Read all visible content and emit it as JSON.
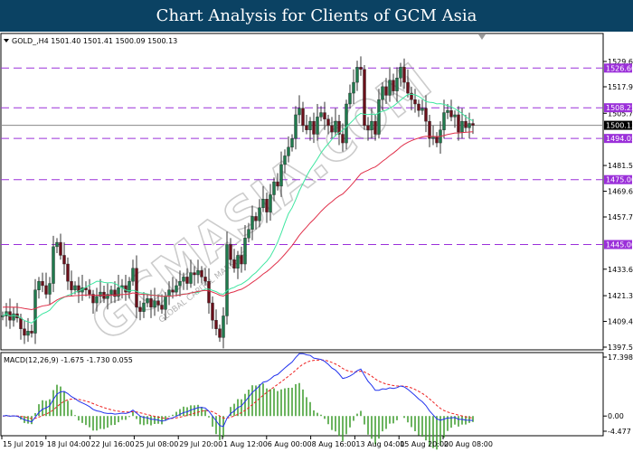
{
  "header": {
    "title": "Chart Analysis for Clients of GCM Asia"
  },
  "watermark": {
    "logo_text": "GCMASIA.COM",
    "sub_text": "GLOBAL CAPITAL MARKETS"
  },
  "colors": {
    "bull": "#1f7a4d",
    "bear": "#6b0f1a",
    "ma_fast": "#3ee6a0",
    "ma_slow": "#e0304a",
    "level": "#9b30d9",
    "macd": "#2233ee",
    "signal": "#ee2222",
    "hist": "#3a9a2a"
  },
  "chart_data": [
    {
      "type": "candlestick",
      "symbol_info": "GOLD_,H4  1501.40 1501.41 1500.09 1500.13",
      "current_price": "1500.13",
      "ylim": [
        1397.55,
        1529.65
      ],
      "y_ticks": [
        "1529.65",
        "1517.95",
        "1505.70",
        "1481.55",
        "1469.65",
        "1457.75",
        "1433.60",
        "1421.35",
        "1409.45",
        "1397.55"
      ],
      "x_ticks": [
        "15 Jul 2019",
        "18 Jul 04:00",
        "22 Jul 16:00",
        "25 Jul 08:00",
        "29 Jul 20:00",
        "1 Aug 12:00",
        "6 Aug 00:00",
        "8 Aug 16:00",
        "13 Aug 04:00",
        "15 Aug 20:00",
        "20 Aug 08:00"
      ],
      "levels": [
        "1526.60",
        "1508.25",
        "1494.05",
        "1475.00",
        "1445.00"
      ],
      "closes": [
        1412,
        1414,
        1410,
        1413,
        1411,
        1406,
        1403,
        1405,
        1404,
        1424,
        1428,
        1426,
        1422,
        1427,
        1444,
        1446,
        1440,
        1436,
        1428,
        1424,
        1426,
        1423,
        1425,
        1424,
        1422,
        1418,
        1421,
        1423,
        1420,
        1422,
        1424,
        1421,
        1425,
        1426,
        1423,
        1428,
        1434,
        1416,
        1414,
        1418,
        1420,
        1416,
        1419,
        1417,
        1415,
        1421,
        1424,
        1423,
        1426,
        1428,
        1430,
        1427,
        1432,
        1431,
        1433,
        1430,
        1428,
        1418,
        1410,
        1406,
        1402,
        1412,
        1445,
        1438,
        1434,
        1440,
        1436,
        1448,
        1452,
        1458,
        1456,
        1462,
        1466,
        1460,
        1468,
        1474,
        1472,
        1482,
        1486,
        1490,
        1494,
        1505,
        1508,
        1500,
        1498,
        1502,
        1496,
        1504,
        1506,
        1503,
        1500,
        1497,
        1502,
        1496,
        1492,
        1510,
        1515,
        1520,
        1527,
        1526,
        1500,
        1498,
        1502,
        1496,
        1512,
        1518,
        1514,
        1521,
        1516,
        1522,
        1527,
        1520,
        1515,
        1512,
        1510,
        1507,
        1508,
        1502,
        1494,
        1495,
        1492,
        1498,
        1506,
        1507,
        1504,
        1505,
        1497,
        1502,
        1499,
        1501,
        1500.13
      ],
      "overlays": [
        "moving average (fast)",
        "moving average (slow)"
      ]
    },
    {
      "type": "macd",
      "label": "MACD(12,26,9) -1.675 -1.730 0.055",
      "params": [
        12,
        26,
        9
      ],
      "ylim": [
        -4.477,
        17.398
      ],
      "y_ticks": [
        "17.398",
        "0.00",
        "-4.477"
      ]
    }
  ]
}
